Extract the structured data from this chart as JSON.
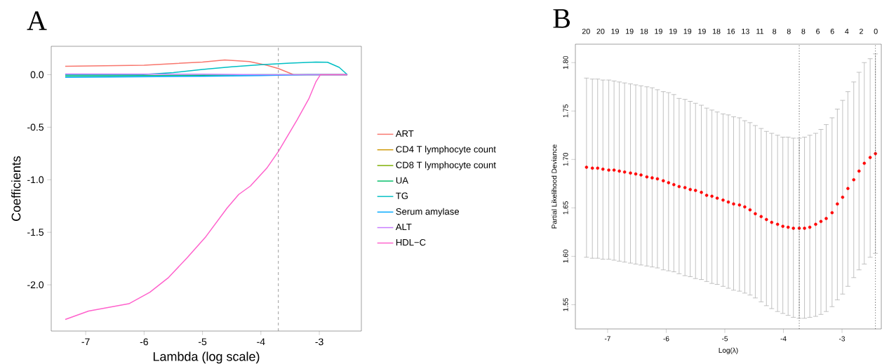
{
  "chart_data": [
    {
      "type": "line",
      "title": "A",
      "xlabel": "Lambda (log scale)",
      "ylabel": "Coefficients",
      "legend": "right",
      "xlim": [
        -7.59,
        -2.28
      ],
      "ylim": [
        -2.44,
        0.27
      ],
      "xticks": [
        -7,
        -6,
        -5,
        -4,
        -3
      ],
      "yticks": [
        {
          "value": 0,
          "label": "0.0"
        },
        {
          "value": -0.5,
          "label": "-0.5"
        },
        {
          "value": -1.0,
          "label": "-1.0"
        },
        {
          "value": -1.5,
          "label": "-1.5"
        },
        {
          "value": -2.0,
          "label": "-2.0"
        }
      ],
      "ref_lines": [
        {
          "axis": "x",
          "value": -3.7,
          "line_style": "dashed",
          "color": "#808080"
        }
      ],
      "series": [
        {
          "name": "ART",
          "color": "#F8766D",
          "x": [
            -7.35,
            -6,
            -5,
            -4.62,
            -4.2,
            -3.9,
            -3.7,
            -3.44,
            -2.52
          ],
          "values": [
            0.08,
            0.09,
            0.12,
            0.14,
            0.125,
            0.09,
            0.058,
            0,
            0
          ]
        },
        {
          "name": "CD4 T lymphocyte count",
          "color": "#CD9600",
          "values": [
            null,
            null
          ]
        },
        {
          "name": "CD8 T lymphocyte count",
          "color": "#7CAE00",
          "values": [
            null,
            null
          ]
        },
        {
          "name": "UA",
          "color": "#00BE67",
          "x": [
            -7.35,
            -5,
            -4,
            -2.52
          ],
          "values": [
            -0.012,
            -0.006,
            0,
            0
          ]
        },
        {
          "name": "TG",
          "color": "#00BFC4",
          "x": [
            -7.35,
            -6.06,
            -5.5,
            -5,
            -4.5,
            -4,
            -3.5,
            -3.06,
            -2.86,
            -2.66,
            -2.52
          ],
          "values": [
            0,
            0,
            0.02,
            0.05,
            0.075,
            0.095,
            0.11,
            0.12,
            0.118,
            0.07,
            0
          ]
        },
        {
          "name": "Serum amylase",
          "color": "#00A9FF",
          "x": [
            -7.35,
            -5,
            -4,
            -3.2,
            -2.52
          ],
          "values": [
            -0.025,
            -0.015,
            -0.008,
            0,
            0
          ]
        },
        {
          "name": "ALT",
          "color": "#C77CFF",
          "x": [
            -7.35,
            -5,
            -4,
            -2.52
          ],
          "values": [
            0.006,
            0.004,
            0,
            0
          ]
        },
        {
          "name": "HDL−C",
          "color": "#FF61CC",
          "x": [
            -7.35,
            -6.95,
            -6.26,
            -5.9,
            -5.58,
            -5.26,
            -4.94,
            -4.58,
            -4.38,
            -4.18,
            -3.9,
            -3.7,
            -3.38,
            -3.18,
            -3.06,
            -2.98,
            -2.52
          ],
          "values": [
            -2.33,
            -2.25,
            -2.18,
            -2.07,
            -1.93,
            -1.74,
            -1.54,
            -1.27,
            -1.14,
            -1.06,
            -0.89,
            -0.73,
            -0.43,
            -0.23,
            -0.07,
            0,
            0
          ]
        }
      ]
    },
    {
      "type": "scatter",
      "title": "B",
      "xlabel": "Log(λ)",
      "ylabel": "Partial Likelihood Deviance",
      "marker": "circle",
      "xlim": [
        -7.55,
        -2.33
      ],
      "ylim": [
        1.525,
        1.819
      ],
      "xticks": [
        -7,
        -6,
        -5,
        -4,
        -3
      ],
      "yticks": [
        {
          "value": 1.55,
          "label": "1.55"
        },
        {
          "value": 1.6,
          "label": "1.60"
        },
        {
          "value": 1.65,
          "label": "1.65"
        },
        {
          "value": 1.7,
          "label": "1.70"
        },
        {
          "value": 1.75,
          "label": "1.75"
        },
        {
          "value": 1.8,
          "label": "1.80"
        }
      ],
      "annotations": [
        "20",
        "20",
        "19",
        "19",
        "18",
        "19",
        "19",
        "19",
        "19",
        "18",
        "16",
        "13",
        "11",
        "8",
        "8",
        "8",
        "6",
        "6",
        "4",
        "2",
        "0"
      ],
      "ref_lines": [
        {
          "axis": "x",
          "value": -3.73,
          "line_style": "dotted",
          "color": "#555555"
        },
        {
          "axis": "x",
          "value": -2.43,
          "line_style": "dotted",
          "color": "#555555"
        }
      ],
      "series": [
        {
          "color": "#FF0000",
          "x": [
            -7.36,
            -7.26,
            -7.17,
            -7.08,
            -6.98,
            -6.89,
            -6.8,
            -6.71,
            -6.61,
            -6.52,
            -6.43,
            -6.33,
            -6.24,
            -6.15,
            -6.05,
            -5.96,
            -5.87,
            -5.78,
            -5.68,
            -5.59,
            -5.5,
            -5.4,
            -5.31,
            -5.22,
            -5.13,
            -5.03,
            -4.94,
            -4.85,
            -4.75,
            -4.66,
            -4.57,
            -4.48,
            -4.38,
            -4.29,
            -4.2,
            -4.1,
            -4.01,
            -3.92,
            -3.83,
            -3.73,
            -3.64,
            -3.55,
            -3.45,
            -3.36,
            -3.27,
            -3.17,
            -3.08,
            -2.99,
            -2.9,
            -2.8,
            -2.71,
            -2.62,
            -2.52,
            -2.43
          ],
          "values": [
            1.692,
            1.691,
            1.691,
            1.69,
            1.689,
            1.689,
            1.688,
            1.687,
            1.686,
            1.685,
            1.684,
            1.682,
            1.681,
            1.68,
            1.678,
            1.676,
            1.674,
            1.672,
            1.671,
            1.669,
            1.668,
            1.666,
            1.663,
            1.662,
            1.66,
            1.658,
            1.656,
            1.654,
            1.653,
            1.651,
            1.648,
            1.644,
            1.641,
            1.638,
            1.635,
            1.633,
            1.631,
            1.63,
            1.629,
            1.629,
            1.629,
            1.63,
            1.633,
            1.636,
            1.639,
            1.645,
            1.654,
            1.661,
            1.67,
            1.679,
            1.688,
            1.696,
            1.702,
            1.706
          ],
          "errors": [
            [
              1.599,
              1.784
            ],
            [
              1.598,
              1.783
            ],
            [
              1.598,
              1.783
            ],
            [
              1.597,
              1.782
            ],
            [
              1.597,
              1.782
            ],
            [
              1.596,
              1.781
            ],
            [
              1.595,
              1.78
            ],
            [
              1.594,
              1.779
            ],
            [
              1.593,
              1.778
            ],
            [
              1.592,
              1.777
            ],
            [
              1.591,
              1.776
            ],
            [
              1.59,
              1.775
            ],
            [
              1.589,
              1.774
            ],
            [
              1.588,
              1.772
            ],
            [
              1.586,
              1.77
            ],
            [
              1.585,
              1.769
            ],
            [
              1.584,
              1.767
            ],
            [
              1.582,
              1.763
            ],
            [
              1.58,
              1.762
            ],
            [
              1.579,
              1.76
            ],
            [
              1.577,
              1.758
            ],
            [
              1.576,
              1.756
            ],
            [
              1.574,
              1.753
            ],
            [
              1.572,
              1.751
            ],
            [
              1.571,
              1.749
            ],
            [
              1.569,
              1.747
            ],
            [
              1.567,
              1.746
            ],
            [
              1.565,
              1.744
            ],
            [
              1.564,
              1.743
            ],
            [
              1.562,
              1.74
            ],
            [
              1.56,
              1.738
            ],
            [
              1.557,
              1.735
            ],
            [
              1.553,
              1.732
            ],
            [
              1.549,
              1.729
            ],
            [
              1.546,
              1.727
            ],
            [
              1.543,
              1.725
            ],
            [
              1.541,
              1.723
            ],
            [
              1.539,
              1.723
            ],
            [
              1.537,
              1.722
            ],
            [
              1.536,
              1.722
            ],
            [
              1.536,
              1.723
            ],
            [
              1.537,
              1.725
            ],
            [
              1.538,
              1.727
            ],
            [
              1.54,
              1.731
            ],
            [
              1.543,
              1.736
            ],
            [
              1.548,
              1.743
            ],
            [
              1.555,
              1.752
            ],
            [
              1.561,
              1.761
            ],
            [
              1.569,
              1.77
            ],
            [
              1.578,
              1.78
            ],
            [
              1.586,
              1.79
            ],
            [
              1.592,
              1.8
            ],
            [
              1.599,
              1.804
            ],
            [
              1.603,
              1.809
            ]
          ]
        }
      ]
    }
  ]
}
